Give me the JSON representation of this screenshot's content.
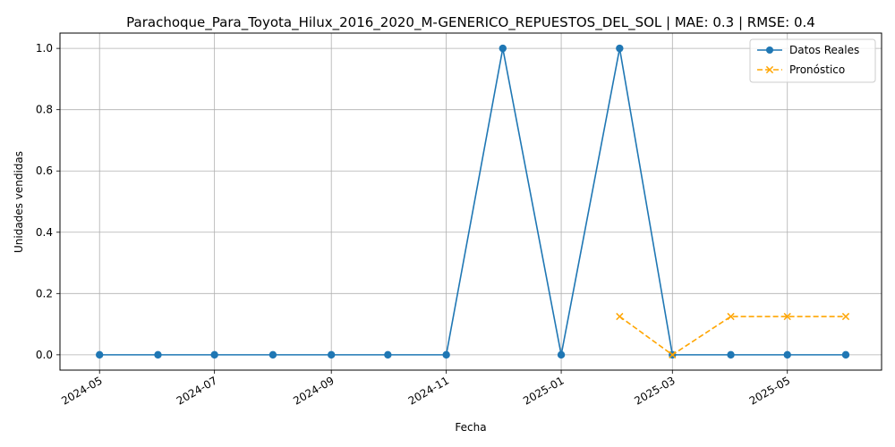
{
  "chart_data": {
    "type": "line",
    "title": "Parachoque_Para_Toyota_Hilux_2016_2020_M-GENERICO_REPUESTOS_DEL_SOL | MAE: 0.3 | RMSE: 0.4",
    "xlabel": "Fecha",
    "ylabel": "Unidades vendidas",
    "ylim": [
      -0.05,
      1.05
    ],
    "xlim": [
      "2024-04-10",
      "2025-06-20"
    ],
    "grid": true,
    "legend_position": "top-right",
    "x_ticks": [
      "2024-05",
      "2024-07",
      "2024-09",
      "2024-11",
      "2025-01",
      "2025-03",
      "2025-05"
    ],
    "y_ticks": [
      "0.0",
      "0.2",
      "0.4",
      "0.6",
      "0.8",
      "1.0"
    ],
    "y_tick_values": [
      0.0,
      0.2,
      0.4,
      0.6,
      0.8,
      1.0
    ],
    "series": [
      {
        "name": "Datos Reales",
        "color": "#1f77b4",
        "marker": "circle",
        "linestyle": "solid",
        "x": [
          "2024-05-01",
          "2024-06-01",
          "2024-07-01",
          "2024-08-01",
          "2024-09-01",
          "2024-10-01",
          "2024-11-01",
          "2024-12-01",
          "2025-01-01",
          "2025-02-01",
          "2025-03-01",
          "2025-04-01",
          "2025-05-01",
          "2025-06-01"
        ],
        "values": [
          0,
          0,
          0,
          0,
          0,
          0,
          0,
          1,
          0,
          1,
          0,
          0,
          0,
          0
        ]
      },
      {
        "name": "Pronóstico",
        "color": "#ffa500",
        "marker": "x",
        "linestyle": "dashed",
        "x": [
          "2025-02-01",
          "2025-03-01",
          "2025-04-01",
          "2025-05-01",
          "2025-06-01"
        ],
        "values": [
          0.125,
          0.0,
          0.125,
          0.125,
          0.125
        ]
      }
    ]
  }
}
